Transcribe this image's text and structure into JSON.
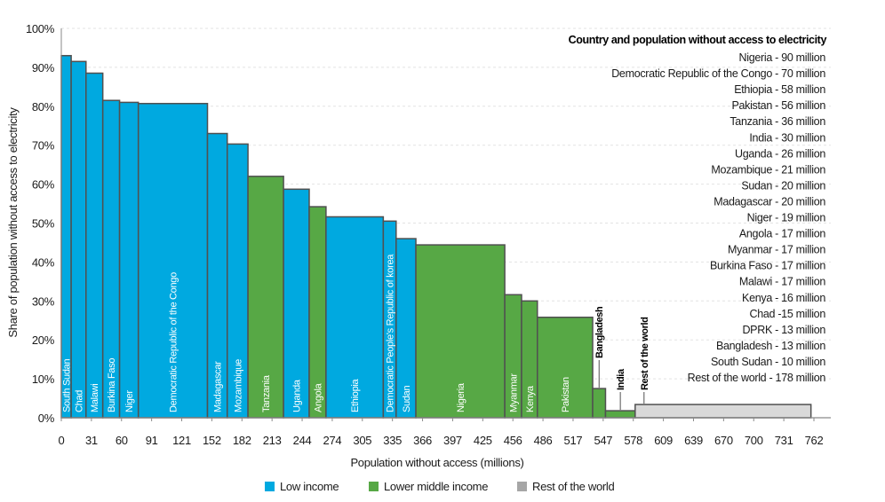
{
  "chart_data": {
    "type": "bar",
    "variant": "variable-width (marimekko)",
    "xlabel": "Population without access (millions)",
    "ylabel": "Share of population without access to electricity",
    "ylim": [
      0,
      100
    ],
    "xlim": [
      0,
      762
    ],
    "grid": "horizontal dashed",
    "x_tick_labels": [
      "0",
      "31",
      "60",
      "91",
      "121",
      "152",
      "182",
      "213",
      "244",
      "274",
      "305",
      "335",
      "366",
      "397",
      "425",
      "456",
      "486",
      "517",
      "547",
      "578",
      "609",
      "639",
      "670",
      "700",
      "731",
      "762"
    ],
    "y_tick_labels": [
      "0%",
      "10%",
      "20%",
      "30%",
      "40%",
      "50%",
      "60%",
      "70%",
      "80%",
      "90%",
      "100%"
    ],
    "colors": {
      "Low income": "#00a9e0",
      "Lower middle income": "#57a845",
      "Rest of the world": "#d9d9d9",
      "legend_rest": "#a6a6a6",
      "outline": "#505050"
    },
    "legend": [
      {
        "label": "Low income",
        "group": "low"
      },
      {
        "label": "Lower middle income",
        "group": "lmi"
      },
      {
        "label": "Rest of the world",
        "group": "row"
      }
    ],
    "bars": [
      {
        "label": "South Sudan",
        "population": 10,
        "share": 93,
        "group": "low"
      },
      {
        "label": "Chad",
        "population": 15,
        "share": 91.5,
        "group": "low"
      },
      {
        "label": "Malawi",
        "population": 17,
        "share": 88.5,
        "group": "low"
      },
      {
        "label": "Burkina Faso",
        "population": 17,
        "share": 81.5,
        "group": "low"
      },
      {
        "label": "Niger",
        "population": 19,
        "share": 81,
        "group": "low"
      },
      {
        "label": "Democratic Republic of the Congo",
        "population": 70,
        "share": 80.7,
        "group": "low"
      },
      {
        "label": "Madagascar",
        "population": 20,
        "share": 73,
        "group": "low"
      },
      {
        "label": "Mozambique",
        "population": 21,
        "share": 70.3,
        "group": "low"
      },
      {
        "label": "Tanzania",
        "population": 36,
        "share": 62,
        "group": "lmi"
      },
      {
        "label": "Uganda",
        "population": 26,
        "share": 58.7,
        "group": "low"
      },
      {
        "label": "Angola",
        "population": 17,
        "share": 54.2,
        "group": "lmi"
      },
      {
        "label": "Ethiopia",
        "population": 58,
        "share": 51.6,
        "group": "low"
      },
      {
        "label": "Democratic People's Republic of korea",
        "population": 13,
        "share": 50.5,
        "group": "low"
      },
      {
        "label": "Sudan",
        "population": 20,
        "share": 46,
        "group": "low"
      },
      {
        "label": "Nigeria",
        "population": 90,
        "share": 44.4,
        "group": "lmi"
      },
      {
        "label": "Myanmar",
        "population": 17,
        "share": 31.6,
        "group": "lmi"
      },
      {
        "label": "Kenya",
        "population": 16,
        "share": 30,
        "group": "lmi"
      },
      {
        "label": "Pakistan",
        "population": 56,
        "share": 25.8,
        "group": "lmi"
      },
      {
        "label": "Bangladesh",
        "population": 13,
        "share": 7.5,
        "group": "lmi",
        "label_outside": true
      },
      {
        "label": "India",
        "population": 30,
        "share": 1.8,
        "group": "lmi",
        "label_outside": true
      },
      {
        "label": "Rest of the world",
        "population": 178,
        "share": 3.4,
        "group": "row",
        "label_outside": true
      }
    ],
    "annotation": {
      "title": "Country and population without access to electricity",
      "items": [
        "Nigeria - 90 million",
        "Democratic Republic of the Congo  - 70 million",
        "Ethiopia  - 58 million",
        "Pakistan  - 56 million",
        "Tanzania  - 36 million",
        "India  - 30 million",
        "Uganda - 26 million",
        "Mozambique  - 21 million",
        "Sudan - 20 million",
        "Madagascar  - 20 million",
        "Niger - 19 million",
        "Angola - 17 million",
        "Myanmar - 17 million",
        "Burkina Faso - 17 million",
        "Malawi - 17 million",
        "Kenya - 16 million",
        "Chad  -15 million",
        "DPRK - 13 million",
        "Bangladesh - 13 million",
        "South Sudan - 10 million",
        "Rest of the world - 178 million"
      ]
    }
  }
}
